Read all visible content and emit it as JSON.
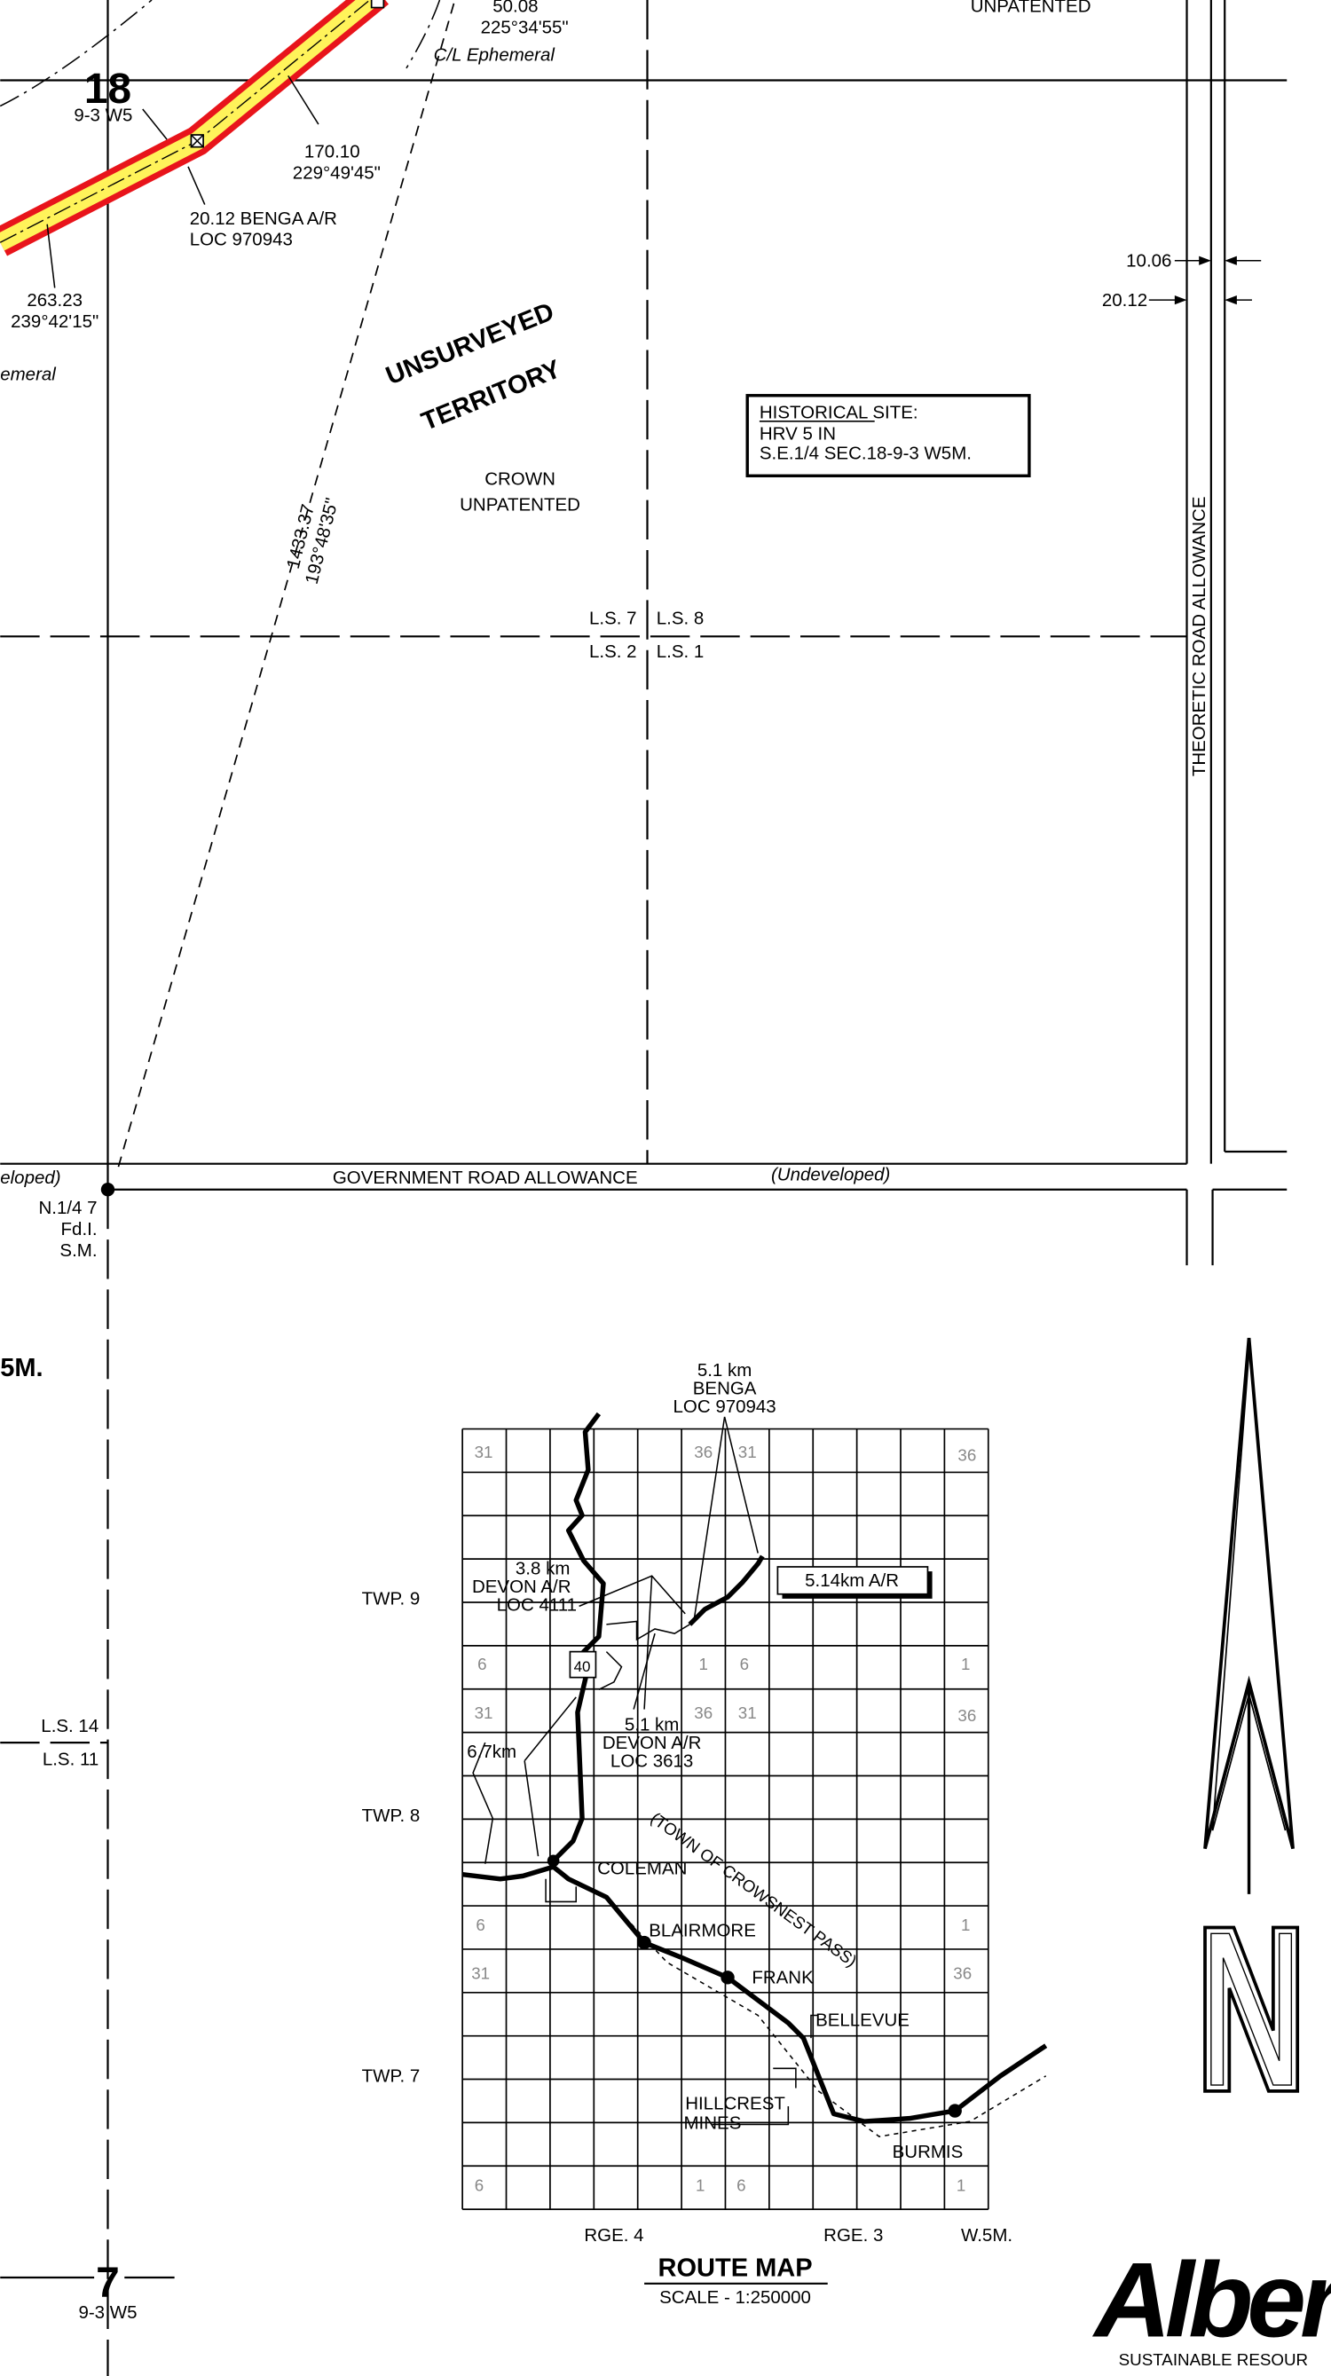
{
  "plan": {
    "top_bearing": {
      "distance": "50.08",
      "bearing": "225°34'55\""
    },
    "centerline_label": "C/L Ephemeral",
    "top_right_label": "UNPATENTED",
    "section_18": {
      "number": "18",
      "legal": "9-3 W5"
    },
    "segment_1": {
      "distance": "170.10",
      "bearing": "229°49'45\""
    },
    "right_of_way": {
      "width": "20.12 BENGA A/R",
      "loc": "LOC 970943"
    },
    "segment_2": {
      "distance": "263.23",
      "bearing": "239°42'15\""
    },
    "left_ephemeral": "emeral",
    "widths": [
      "10.06",
      "20.12"
    ],
    "territory": [
      "UNSURVEYED",
      "TERRITORY"
    ],
    "historical_site": {
      "title": "HISTORICAL SITE",
      "colon": ":",
      "lines": [
        "HRV 5 IN",
        "S.E.1/4 SEC.18-9-3 W5M."
      ]
    },
    "crown": [
      "CROWN",
      "UNPATENTED"
    ],
    "tie_line": {
      "distance": "1433.37",
      "bearing": "193°48'35\""
    },
    "legal_subdivisions": [
      "L.S. 7",
      "L.S. 8",
      "L.S. 2",
      "L.S. 1",
      "L.S. 14",
      "L.S. 11"
    ],
    "theoretic_road": "THEORETIC ROAD ALLOWANCE",
    "road_allowance": {
      "left": "eloped)",
      "name": "GOVERNMENT ROAD ALLOWANCE",
      "status": "(Undeveloped)"
    },
    "monument": [
      "N.1/4 7",
      "Fd.I.",
      "S.M."
    ],
    "left_label": "5M.",
    "section_7": {
      "number": "7",
      "legal": "9-3 W5"
    }
  },
  "route_map": {
    "benga": [
      "5.1 km",
      "BENGA",
      "LOC 970943"
    ],
    "devon_4111": [
      "3.8 km",
      "DEVON A/R",
      "LOC 4111"
    ],
    "access_road": "5.14km A/R",
    "highway": "40",
    "devon_3613": [
      "5.1 km",
      "DEVON A/R",
      "LOC 3613"
    ],
    "distance_coleman": "6.7km",
    "townships": [
      "TWP. 9",
      "TWP. 8",
      "TWP. 7"
    ],
    "towns": [
      "COLEMAN",
      "BLAIRMORE",
      "FRANK",
      "BELLEVUE",
      "HILLCREST",
      "MINES",
      "BURMIS"
    ],
    "municipality": "(TOWN OF CROWSNEST PASS)",
    "ranges": [
      "RGE. 4",
      "RGE. 3",
      "W.5M."
    ],
    "section_numbers": [
      "31",
      "36",
      "31",
      "36",
      "6",
      "1",
      "6",
      "1",
      "31",
      "36",
      "31",
      "36",
      "6",
      "1",
      "31",
      "36",
      "6",
      "1",
      "6",
      "1"
    ],
    "title": "ROUTE MAP",
    "scale": "SCALE  -  1:250000"
  },
  "logo": {
    "name": "Alberta",
    "tagline": "SUSTAINABLE RESOUR"
  }
}
